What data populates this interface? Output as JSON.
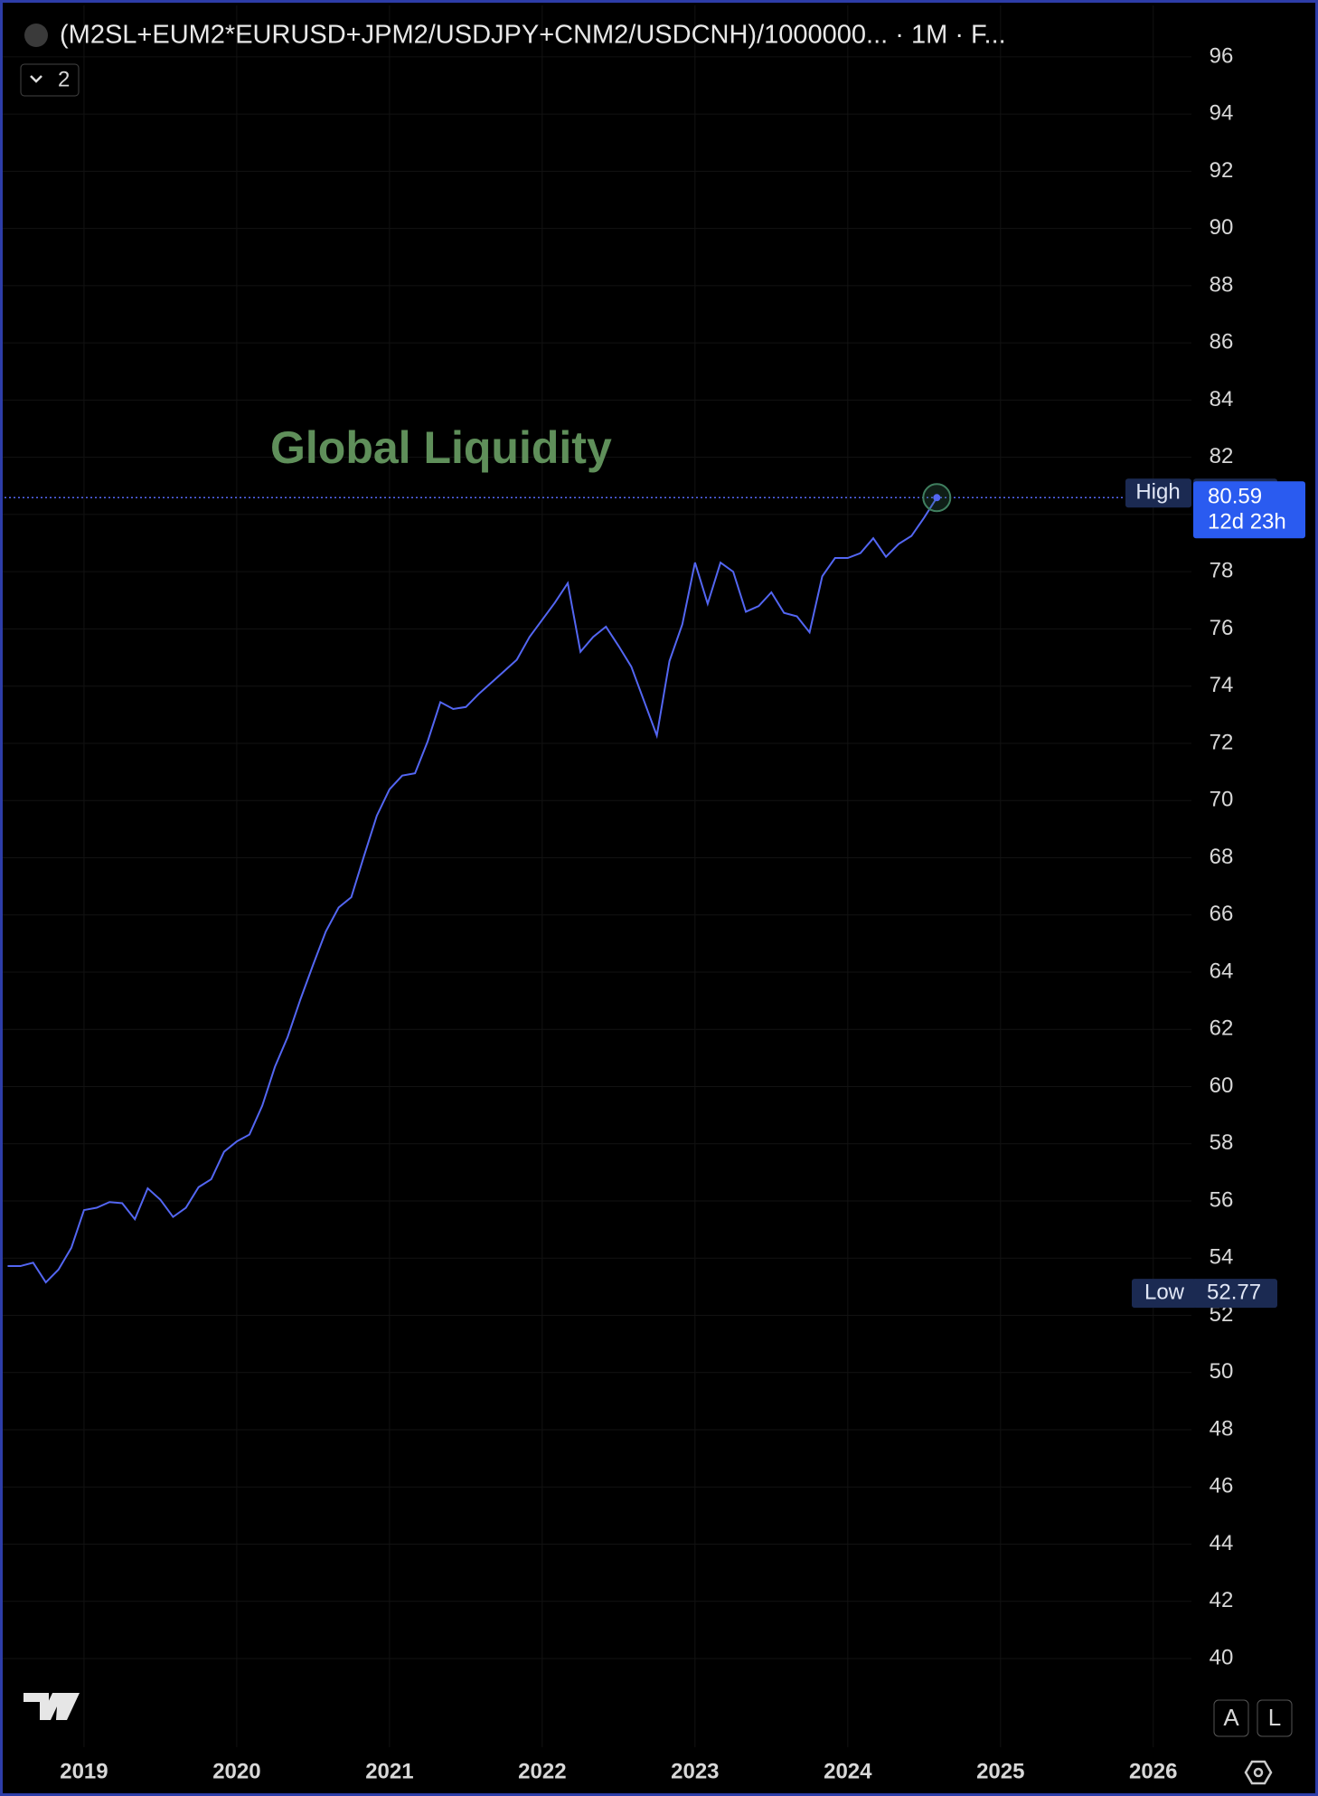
{
  "chart_data": {
    "type": "line",
    "title": "(M2SL+EUM2*EURUSD+JPM2/USDJPY+CNM2/USDCNH)/1000000... · 1M · F...",
    "legend_toggle": "2",
    "annotation": "Global Liquidity",
    "series": [
      {
        "name": "Global Liquidity",
        "color": "#5366f2",
        "x": [
          2018.5,
          2018.583,
          2018.667,
          2018.75,
          2018.833,
          2018.917,
          2019.0,
          2019.083,
          2019.167,
          2019.25,
          2019.333,
          2019.417,
          2019.5,
          2019.583,
          2019.667,
          2019.75,
          2019.833,
          2019.917,
          2020.0,
          2020.083,
          2020.167,
          2020.25,
          2020.333,
          2020.417,
          2020.5,
          2020.583,
          2020.667,
          2020.75,
          2020.833,
          2020.917,
          2021.0,
          2021.083,
          2021.167,
          2021.25,
          2021.333,
          2021.417,
          2021.5,
          2021.583,
          2021.667,
          2021.75,
          2021.833,
          2021.917,
          2022.0,
          2022.083,
          2022.167,
          2022.25,
          2022.333,
          2022.417,
          2022.5,
          2022.583,
          2022.667,
          2022.75,
          2022.833,
          2022.917,
          2023.0,
          2023.083,
          2023.167,
          2023.25,
          2023.333,
          2023.417,
          2023.5,
          2023.583,
          2023.667,
          2023.75,
          2023.833,
          2023.917,
          2024.0,
          2024.083,
          2024.167,
          2024.25,
          2024.333,
          2024.417,
          2024.5,
          2024.583
        ],
        "values": [
          53.72,
          53.72,
          53.84,
          53.15,
          53.6,
          54.36,
          55.68,
          55.76,
          55.96,
          55.92,
          55.36,
          56.44,
          56.04,
          55.44,
          55.76,
          56.48,
          56.76,
          57.72,
          58.08,
          58.32,
          59.33,
          60.69,
          61.73,
          63.05,
          64.26,
          65.42,
          66.26,
          66.62,
          68.06,
          69.47,
          70.39,
          70.87,
          70.95,
          72.07,
          73.44,
          73.2,
          73.27,
          73.72,
          74.12,
          74.52,
          74.92,
          75.72,
          76.32,
          76.92,
          77.6,
          75.2,
          75.72,
          76.08,
          75.4,
          74.68,
          73.47,
          72.27,
          74.88,
          76.16,
          78.32,
          76.88,
          78.32,
          78.0,
          76.6,
          76.8,
          77.28,
          76.56,
          76.44,
          75.88,
          77.84,
          78.48,
          78.48,
          78.65,
          79.17,
          78.52,
          78.97,
          79.25,
          79.89,
          80.59
        ]
      }
    ],
    "high": {
      "label": "High",
      "value": 80.75
    },
    "low": {
      "label": "Low",
      "value": 52.77
    },
    "last": {
      "value": 80.59,
      "countdown": "12d 23h"
    },
    "xlim": [
      2018.45,
      2026.25
    ],
    "xticks": [
      2019,
      2020,
      2021,
      2022,
      2023,
      2024,
      2025,
      2026
    ],
    "ylim": [
      36.9,
      97.8
    ],
    "yticks": [
      40,
      42,
      44,
      46,
      48,
      50,
      52,
      54,
      56,
      58,
      60,
      62,
      64,
      66,
      68,
      70,
      72,
      74,
      76,
      78,
      80,
      82,
      84,
      86,
      88,
      90,
      92,
      94,
      96
    ],
    "grid": true,
    "scale_buttons": [
      "A",
      "L"
    ]
  }
}
